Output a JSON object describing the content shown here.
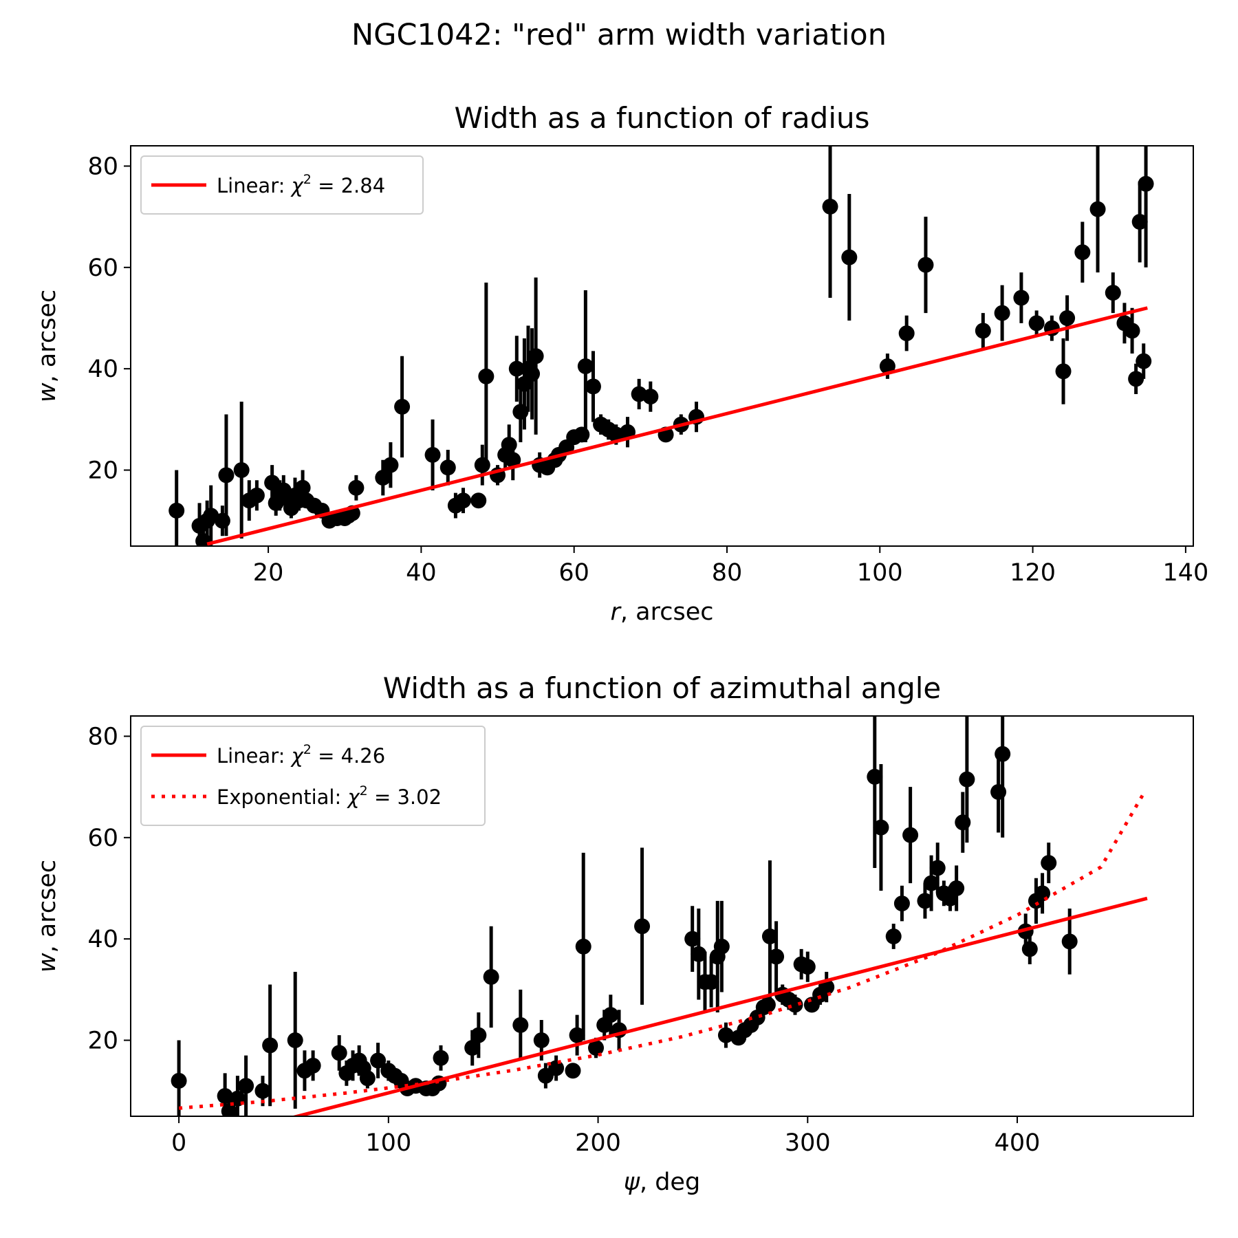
{
  "suptitle": "NGC1042: \"red\" arm width variation",
  "colors": {
    "data": "#000000",
    "fit": "#ff0000",
    "frame": "#000000",
    "legend_border": "#cccccc"
  },
  "chart_data": [
    {
      "type": "scatter",
      "title": "Width as a function of radius",
      "xlabel_var": "r",
      "xlabel_unit": ", arcsec",
      "ylabel_var": "w",
      "ylabel_unit": ", arcsec",
      "xlim": [
        2,
        141
      ],
      "ylim": [
        5,
        84
      ],
      "xticks": [
        20,
        40,
        60,
        80,
        100,
        120,
        140
      ],
      "yticks": [
        20,
        40,
        60,
        80
      ],
      "legend_position": "upper-left",
      "series": [
        {
          "name": "data",
          "kind": "errorbar",
          "points": [
            [
              8,
              12,
              8
            ],
            [
              11,
              9,
              4.5
            ],
            [
              11.5,
              6,
              3
            ],
            [
              12,
              10,
              4
            ],
            [
              12.5,
              11,
              6
            ],
            [
              14,
              10,
              3
            ],
            [
              14.5,
              19,
              12
            ],
            [
              16.5,
              20,
              13.5
            ],
            [
              17.5,
              14,
              4
            ],
            [
              18.5,
              15,
              3
            ],
            [
              20.5,
              17.5,
              3.5
            ],
            [
              21,
              13.5,
              2.5
            ],
            [
              21.5,
              15,
              3
            ],
            [
              22,
              16,
              3
            ],
            [
              22.5,
              14.5,
              2
            ],
            [
              23,
              12.5,
              2
            ],
            [
              23.5,
              15,
              3.5
            ],
            [
              24,
              14,
              2
            ],
            [
              24.5,
              16.5,
              3.5
            ],
            [
              25,
              14,
              1.5
            ],
            [
              26,
              13,
              1
            ],
            [
              27,
              12,
              1
            ],
            [
              28,
              10,
              1
            ],
            [
              29,
              10.5,
              1
            ],
            [
              30,
              10.5,
              1
            ],
            [
              30.5,
              11,
              1
            ],
            [
              31,
              11.5,
              1
            ],
            [
              31.5,
              16.5,
              2.5
            ],
            [
              35,
              18.5,
              3.5
            ],
            [
              36,
              21,
              4.5
            ],
            [
              37.5,
              32.5,
              10
            ],
            [
              41.5,
              23,
              7
            ],
            [
              43.5,
              20.5,
              3.5
            ],
            [
              44.5,
              13,
              2.5
            ],
            [
              45.5,
              14,
              2.5
            ],
            [
              47.5,
              14,
              1.5
            ],
            [
              48,
              21,
              4
            ],
            [
              48.5,
              38.5,
              18.5
            ],
            [
              50,
              19,
              2
            ],
            [
              51,
              23,
              3
            ],
            [
              51.5,
              25,
              4
            ],
            [
              52,
              22,
              4
            ],
            [
              52.5,
              40,
              6.5
            ],
            [
              53,
              31.5,
              6
            ],
            [
              53.5,
              37,
              9
            ],
            [
              54,
              40,
              8.5
            ],
            [
              54.5,
              39,
              9
            ],
            [
              55,
              42.5,
              15.5
            ],
            [
              55.5,
              21,
              2.5
            ],
            [
              56.5,
              20.5,
              1.5
            ],
            [
              57.5,
              22,
              1
            ],
            [
              58,
              23,
              1
            ],
            [
              59,
              24.5,
              1
            ],
            [
              60,
              26.5,
              1
            ],
            [
              61,
              27,
              1
            ],
            [
              61.5,
              40.5,
              15
            ],
            [
              62.5,
              36.5,
              7
            ],
            [
              63.5,
              29,
              2
            ],
            [
              64.5,
              28,
              2
            ],
            [
              65.5,
              27,
              2
            ],
            [
              67,
              27.5,
              3
            ],
            [
              68.5,
              35,
              3
            ],
            [
              70,
              34.5,
              3
            ],
            [
              72,
              27,
              1.5
            ],
            [
              74,
              29,
              2
            ],
            [
              76,
              30.5,
              3
            ],
            [
              93.5,
              72,
              18
            ],
            [
              96,
              62,
              12.5
            ],
            [
              101,
              40.5,
              2.5
            ],
            [
              103.5,
              47,
              3.5
            ],
            [
              106,
              60.5,
              9.5
            ],
            [
              113.5,
              47.5,
              3.5
            ],
            [
              116,
              51,
              5.5
            ],
            [
              118.5,
              54,
              5
            ],
            [
              120.5,
              49,
              2.5
            ],
            [
              122.5,
              48,
              2.5
            ],
            [
              124,
              39.5,
              6.5
            ],
            [
              124.5,
              50,
              4.5
            ],
            [
              126.5,
              63,
              6
            ],
            [
              128.5,
              71.5,
              12.5
            ],
            [
              130.5,
              55,
              4
            ],
            [
              132,
              49,
              4
            ],
            [
              133,
              47.5,
              4.5
            ],
            [
              133.5,
              38,
              3
            ],
            [
              134,
              69,
              8
            ],
            [
              134.5,
              41.5,
              3.5
            ],
            [
              134.8,
              76.5,
              16.5
            ]
          ]
        },
        {
          "name": "Linear: χ² = 2.84",
          "kind": "line",
          "style": "solid",
          "x": [
            12,
            135
          ],
          "y": [
            5.4,
            52
          ]
        }
      ],
      "legend": [
        {
          "pre": "Linear: ",
          "var": "χ",
          "sup": "2",
          "post": " = 2.84",
          "style": "solid"
        }
      ]
    },
    {
      "type": "scatter",
      "title": "Width as a function of azimuthal angle",
      "xlabel_var": "ψ",
      "xlabel_unit": ", deg",
      "ylabel_var": "w",
      "ylabel_unit": ", arcsec",
      "xlim": [
        -23,
        484
      ],
      "ylim": [
        5,
        84
      ],
      "xticks": [
        0,
        100,
        200,
        300,
        400
      ],
      "yticks": [
        20,
        40,
        60,
        80
      ],
      "legend_position": "upper-left",
      "series": [
        {
          "name": "data",
          "kind": "errorbar",
          "points": [
            [
              0,
              12,
              8
            ],
            [
              22,
              9,
              4.5
            ],
            [
              24,
              6,
              3
            ],
            [
              28,
              8.5,
              4.5
            ],
            [
              32,
              11,
              6
            ],
            [
              40,
              10,
              3
            ],
            [
              43.5,
              19,
              12
            ],
            [
              55.5,
              20,
              13.5
            ],
            [
              60,
              14,
              4
            ],
            [
              64,
              15,
              3
            ],
            [
              76.5,
              17.5,
              3.5
            ],
            [
              80,
              13.5,
              2.5
            ],
            [
              83,
              15,
              3
            ],
            [
              86,
              16,
              3
            ],
            [
              88,
              14.5,
              2
            ],
            [
              90,
              12.5,
              2
            ],
            [
              95,
              16,
              3.5
            ],
            [
              100,
              14,
              2
            ],
            [
              103,
              13,
              1
            ],
            [
              106,
              12,
              1
            ],
            [
              109,
              10.5,
              1
            ],
            [
              113,
              11,
              1
            ],
            [
              118,
              10.5,
              1
            ],
            [
              121,
              10.5,
              1
            ],
            [
              124,
              11.5,
              1
            ],
            [
              125,
              16.5,
              2.5
            ],
            [
              140,
              18.5,
              3.5
            ],
            [
              143,
              21,
              4.5
            ],
            [
              149,
              32.5,
              10
            ],
            [
              163,
              23,
              7
            ],
            [
              173,
              20,
              4
            ],
            [
              175,
              13,
              2.5
            ],
            [
              180,
              14.5,
              2.5
            ],
            [
              188,
              14,
              1.5
            ],
            [
              190,
              21,
              4
            ],
            [
              193,
              38.5,
              18.5
            ],
            [
              199,
              18.5,
              2
            ],
            [
              203,
              23,
              3
            ],
            [
              206,
              25,
              4
            ],
            [
              210,
              22,
              4
            ],
            [
              221,
              42.5,
              15.5
            ],
            [
              245,
              40,
              6.5
            ],
            [
              248,
              37,
              9
            ],
            [
              251,
              31.5,
              6
            ],
            [
              254,
              31.5,
              5
            ],
            [
              257,
              36.5,
              11
            ],
            [
              259,
              38.5,
              9
            ],
            [
              261,
              21,
              2.5
            ],
            [
              267,
              20.5,
              1.5
            ],
            [
              270,
              22,
              1
            ],
            [
              273,
              23,
              1
            ],
            [
              276,
              24.5,
              1
            ],
            [
              279,
              26.5,
              1
            ],
            [
              281,
              27,
              1
            ],
            [
              282,
              40.5,
              15
            ],
            [
              285,
              36.5,
              7
            ],
            [
              288,
              29,
              2
            ],
            [
              291,
              28,
              2
            ],
            [
              294,
              27,
              2
            ],
            [
              297,
              35,
              3
            ],
            [
              300,
              34.5,
              3
            ],
            [
              302,
              27,
              1.5
            ],
            [
              306,
              29,
              2
            ],
            [
              309,
              30.5,
              3
            ],
            [
              332,
              72,
              18
            ],
            [
              335,
              62,
              12.5
            ],
            [
              341,
              40.5,
              2.5
            ],
            [
              345,
              47,
              3.5
            ],
            [
              349,
              60.5,
              9.5
            ],
            [
              356,
              47.5,
              3.5
            ],
            [
              359,
              51,
              5.5
            ],
            [
              362,
              54,
              5
            ],
            [
              365,
              49,
              2.5
            ],
            [
              368,
              48,
              2.5
            ],
            [
              371,
              50,
              4.5
            ],
            [
              374,
              63,
              6
            ],
            [
              376,
              71.5,
              12.5
            ],
            [
              391,
              69,
              8
            ],
            [
              393,
              76.5,
              16.5
            ],
            [
              404,
              41.5,
              3.5
            ],
            [
              406,
              38,
              3
            ],
            [
              409,
              47.5,
              4.5
            ],
            [
              412,
              49,
              4
            ],
            [
              415,
              55,
              4
            ],
            [
              425,
              39.5,
              6.5
            ]
          ]
        },
        {
          "name": "Linear: χ² = 4.26",
          "kind": "line",
          "style": "solid",
          "x": [
            0,
            462
          ],
          "y": [
            -1,
            48
          ]
        },
        {
          "name": "Exponential: χ² = 3.02",
          "kind": "line",
          "style": "dotted",
          "x": [
            0,
            40,
            80,
            120,
            160,
            200,
            240,
            280,
            320,
            360,
            400,
            440,
            460
          ],
          "y": [
            6.6,
            7.9,
            9.6,
            11.6,
            14.1,
            17.1,
            20.7,
            25.1,
            30.4,
            36.9,
            44.7,
            54.2,
            68.5
          ]
        }
      ],
      "legend": [
        {
          "pre": "Linear: ",
          "var": "χ",
          "sup": "2",
          "post": " = 4.26",
          "style": "solid"
        },
        {
          "pre": "Exponential: ",
          "var": "χ",
          "sup": "2",
          "post": " = 3.02",
          "style": "dotted"
        }
      ]
    }
  ]
}
